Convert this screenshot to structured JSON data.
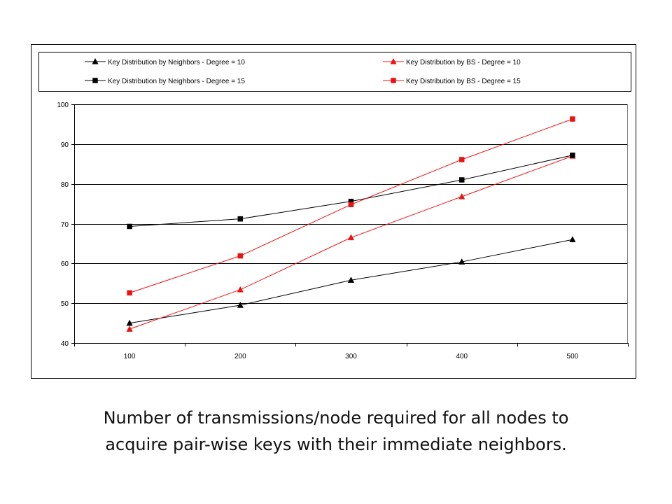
{
  "chart_data": {
    "type": "line",
    "title": "",
    "xlabel": "",
    "ylabel": "",
    "categories": [
      "100",
      "200",
      "300",
      "400",
      "500"
    ],
    "ylim": [
      40,
      100
    ],
    "yticks": [
      "40",
      "50",
      "60",
      "70",
      "80",
      "90",
      "100"
    ],
    "grid": "horizontal",
    "legend_position": "top",
    "series": [
      {
        "name": "Key Distribution by Neighbors - Degree = 10",
        "color": "#000000",
        "marker": "triangle",
        "values": [
          45.0,
          49.5,
          55.8,
          60.4,
          66.0
        ]
      },
      {
        "name": "Key Distribution by BS - Degree = 10",
        "color": "#ee1111",
        "marker": "triangle",
        "values": [
          43.5,
          53.4,
          66.5,
          76.8,
          87.0
        ]
      },
      {
        "name": "Key Distribution by Neighbors - Degree = 15",
        "color": "#000000",
        "marker": "square",
        "values": [
          69.3,
          71.2,
          75.6,
          81.0,
          87.2
        ]
      },
      {
        "name": "Key Distribution by BS - Degree = 15",
        "color": "#ee1111",
        "marker": "square",
        "values": [
          52.6,
          61.9,
          74.8,
          86.1,
          96.3
        ]
      }
    ]
  },
  "caption": {
    "line1": "Number of transmissions/node required for all nodes to",
    "line2": "acquire pair-wise keys with their immediate neighbors."
  }
}
